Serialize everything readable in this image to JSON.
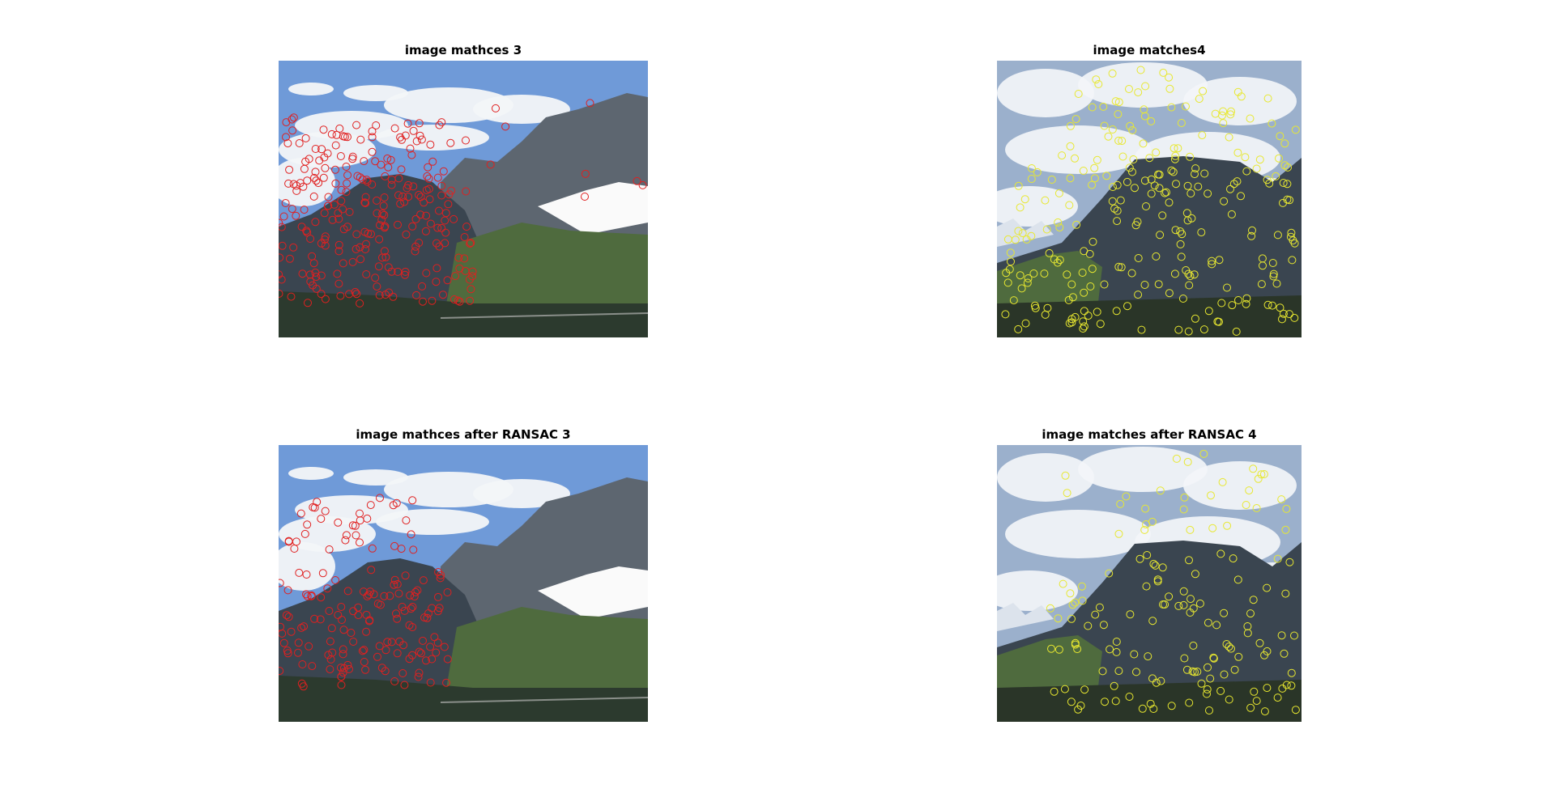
{
  "figure": {
    "panels": [
      {
        "title": "image mathces 3",
        "marker_color": "#e02020",
        "marker_count": 260
      },
      {
        "title": "image matches4",
        "marker_color": "#e8e830",
        "marker_count": 260
      },
      {
        "title": "image mathces after RANSAC 3",
        "marker_color": "#e02020",
        "marker_count": 170
      },
      {
        "title": "image matches after RANSAC 4",
        "marker_color": "#e8e830",
        "marker_count": 150
      }
    ]
  },
  "colors": {
    "background": "#ffffff",
    "sky": "#6f9ad8",
    "cloud": "#f3f5f8",
    "mountain_dark": "#3a4550",
    "grass": "#4f6b3e",
    "snow": "#fafafa"
  }
}
